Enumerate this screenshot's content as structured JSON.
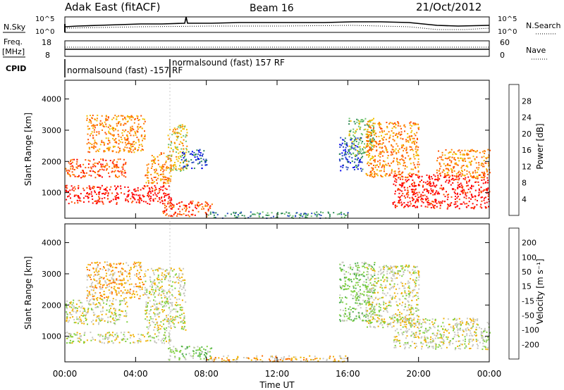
{
  "header": {
    "station": "Adak East (fitACF)",
    "beam": "Beam 16",
    "date": "21/Oct/2012"
  },
  "nsky_panel": {
    "left_label": "N.Sky",
    "left_ticks": [
      "10^5",
      "10^0"
    ],
    "right_ticks": [
      "10^5",
      "10^0"
    ],
    "right_label": "N.Search"
  },
  "freq_panel": {
    "left_label_1": "Freq.",
    "left_label_2": "[MHz]",
    "left_ticks": [
      "18",
      "8"
    ],
    "right_ticks": [
      "60",
      "0"
    ],
    "right_label": "Nave"
  },
  "cpid_panel": {
    "label": "CPID",
    "entries": [
      "normalsound (fast) -157 RF",
      "normalsound (fast) 157 RF"
    ]
  },
  "chart_data": [
    {
      "type": "heatmap",
      "panel": "power",
      "ylabel": "Slant Range [km]",
      "yticks": [
        "1000",
        "2000",
        "3000",
        "4000"
      ],
      "ylim": [
        180,
        4600
      ],
      "xlim": [
        0,
        24
      ],
      "colorbar": {
        "label": "Power [dB]",
        "ticks": [
          "4",
          "8",
          "12",
          "16",
          "20",
          "24",
          "28"
        ],
        "colors": [
          "#0000ee",
          "#2c50c0",
          "#2e8b57",
          "#6fc36f",
          "#f0c000",
          "#ff8000",
          "#ff5000",
          "#ff0000"
        ]
      },
      "scatter_regions_note": "range-time echoes",
      "regions": [
        {
          "t": [
            0.0,
            6.0
          ],
          "r": [
            650,
            1250
          ],
          "level": 7
        },
        {
          "t": [
            0.0,
            3.5
          ],
          "r": [
            1500,
            2100
          ],
          "level": 6
        },
        {
          "t": [
            1.2,
            4.5
          ],
          "r": [
            2300,
            3500
          ],
          "level": 5
        },
        {
          "t": [
            4.5,
            6.0
          ],
          "r": [
            1300,
            2300
          ],
          "level": 5
        },
        {
          "t": [
            5.8,
            6.9
          ],
          "r": [
            1700,
            3200
          ],
          "level": 4
        },
        {
          "t": [
            5.5,
            8.3
          ],
          "r": [
            250,
            750
          ],
          "level": 6
        },
        {
          "t": [
            6.5,
            8.0
          ],
          "r": [
            1800,
            2400
          ],
          "level": 1
        },
        {
          "t": [
            8.0,
            16.0
          ],
          "r": [
            200,
            400
          ],
          "level": 2
        },
        {
          "t": [
            15.5,
            16.8
          ],
          "r": [
            1700,
            2800
          ],
          "level": 1
        },
        {
          "t": [
            16.0,
            17.5
          ],
          "r": [
            2200,
            3400
          ],
          "level": 3
        },
        {
          "t": [
            17.0,
            20.0
          ],
          "r": [
            1500,
            3300
          ],
          "level": 5
        },
        {
          "t": [
            18.5,
            24.0
          ],
          "r": [
            500,
            1600
          ],
          "level": 7
        },
        {
          "t": [
            21.0,
            24.0
          ],
          "r": [
            1500,
            2400
          ],
          "level": 5
        }
      ]
    },
    {
      "type": "heatmap",
      "panel": "velocity",
      "ylabel": "Slant Range [km]",
      "yticks": [
        "1000",
        "2000",
        "3000",
        "4000"
      ],
      "ylim": [
        180,
        4600
      ],
      "xlim": [
        0,
        24
      ],
      "xlabel": "Time UT",
      "xticks": [
        "00:00",
        "04:00",
        "08:00",
        "12:00",
        "16:00",
        "20:00",
        "00:00"
      ],
      "colorbar": {
        "label": "Velocity [m s⁻¹]",
        "ticks": [
          "200",
          "100",
          "50",
          "15",
          "-15",
          "-50",
          "-100",
          "-200"
        ],
        "colors": [
          "#1a3aa0",
          "#2a7a50",
          "#50b050",
          "#80d040",
          "#c8c8c0",
          "#f0b000",
          "#ff7000",
          "#ff2000",
          "#e00000"
        ]
      },
      "regions": [
        {
          "t": [
            0.0,
            6.0
          ],
          "r": [
            800,
            1150
          ],
          "level": 4
        },
        {
          "t": [
            0.0,
            3.5
          ],
          "r": [
            1400,
            2200
          ],
          "level": 4
        },
        {
          "t": [
            1.2,
            4.5
          ],
          "r": [
            2200,
            3400
          ],
          "level": 5
        },
        {
          "t": [
            4.5,
            6.8
          ],
          "r": [
            1200,
            3200
          ],
          "level": 4
        },
        {
          "t": [
            5.8,
            8.3
          ],
          "r": [
            250,
            700
          ],
          "level": 3
        },
        {
          "t": [
            8.0,
            16.0
          ],
          "r": [
            200,
            400
          ],
          "level": 5
        },
        {
          "t": [
            15.5,
            17.5
          ],
          "r": [
            1500,
            3400
          ],
          "level": 3
        },
        {
          "t": [
            17.0,
            20.0
          ],
          "r": [
            1300,
            3300
          ],
          "level": 4
        },
        {
          "t": [
            18.5,
            24.0
          ],
          "r": [
            600,
            1600
          ],
          "level": 4
        }
      ]
    }
  ]
}
